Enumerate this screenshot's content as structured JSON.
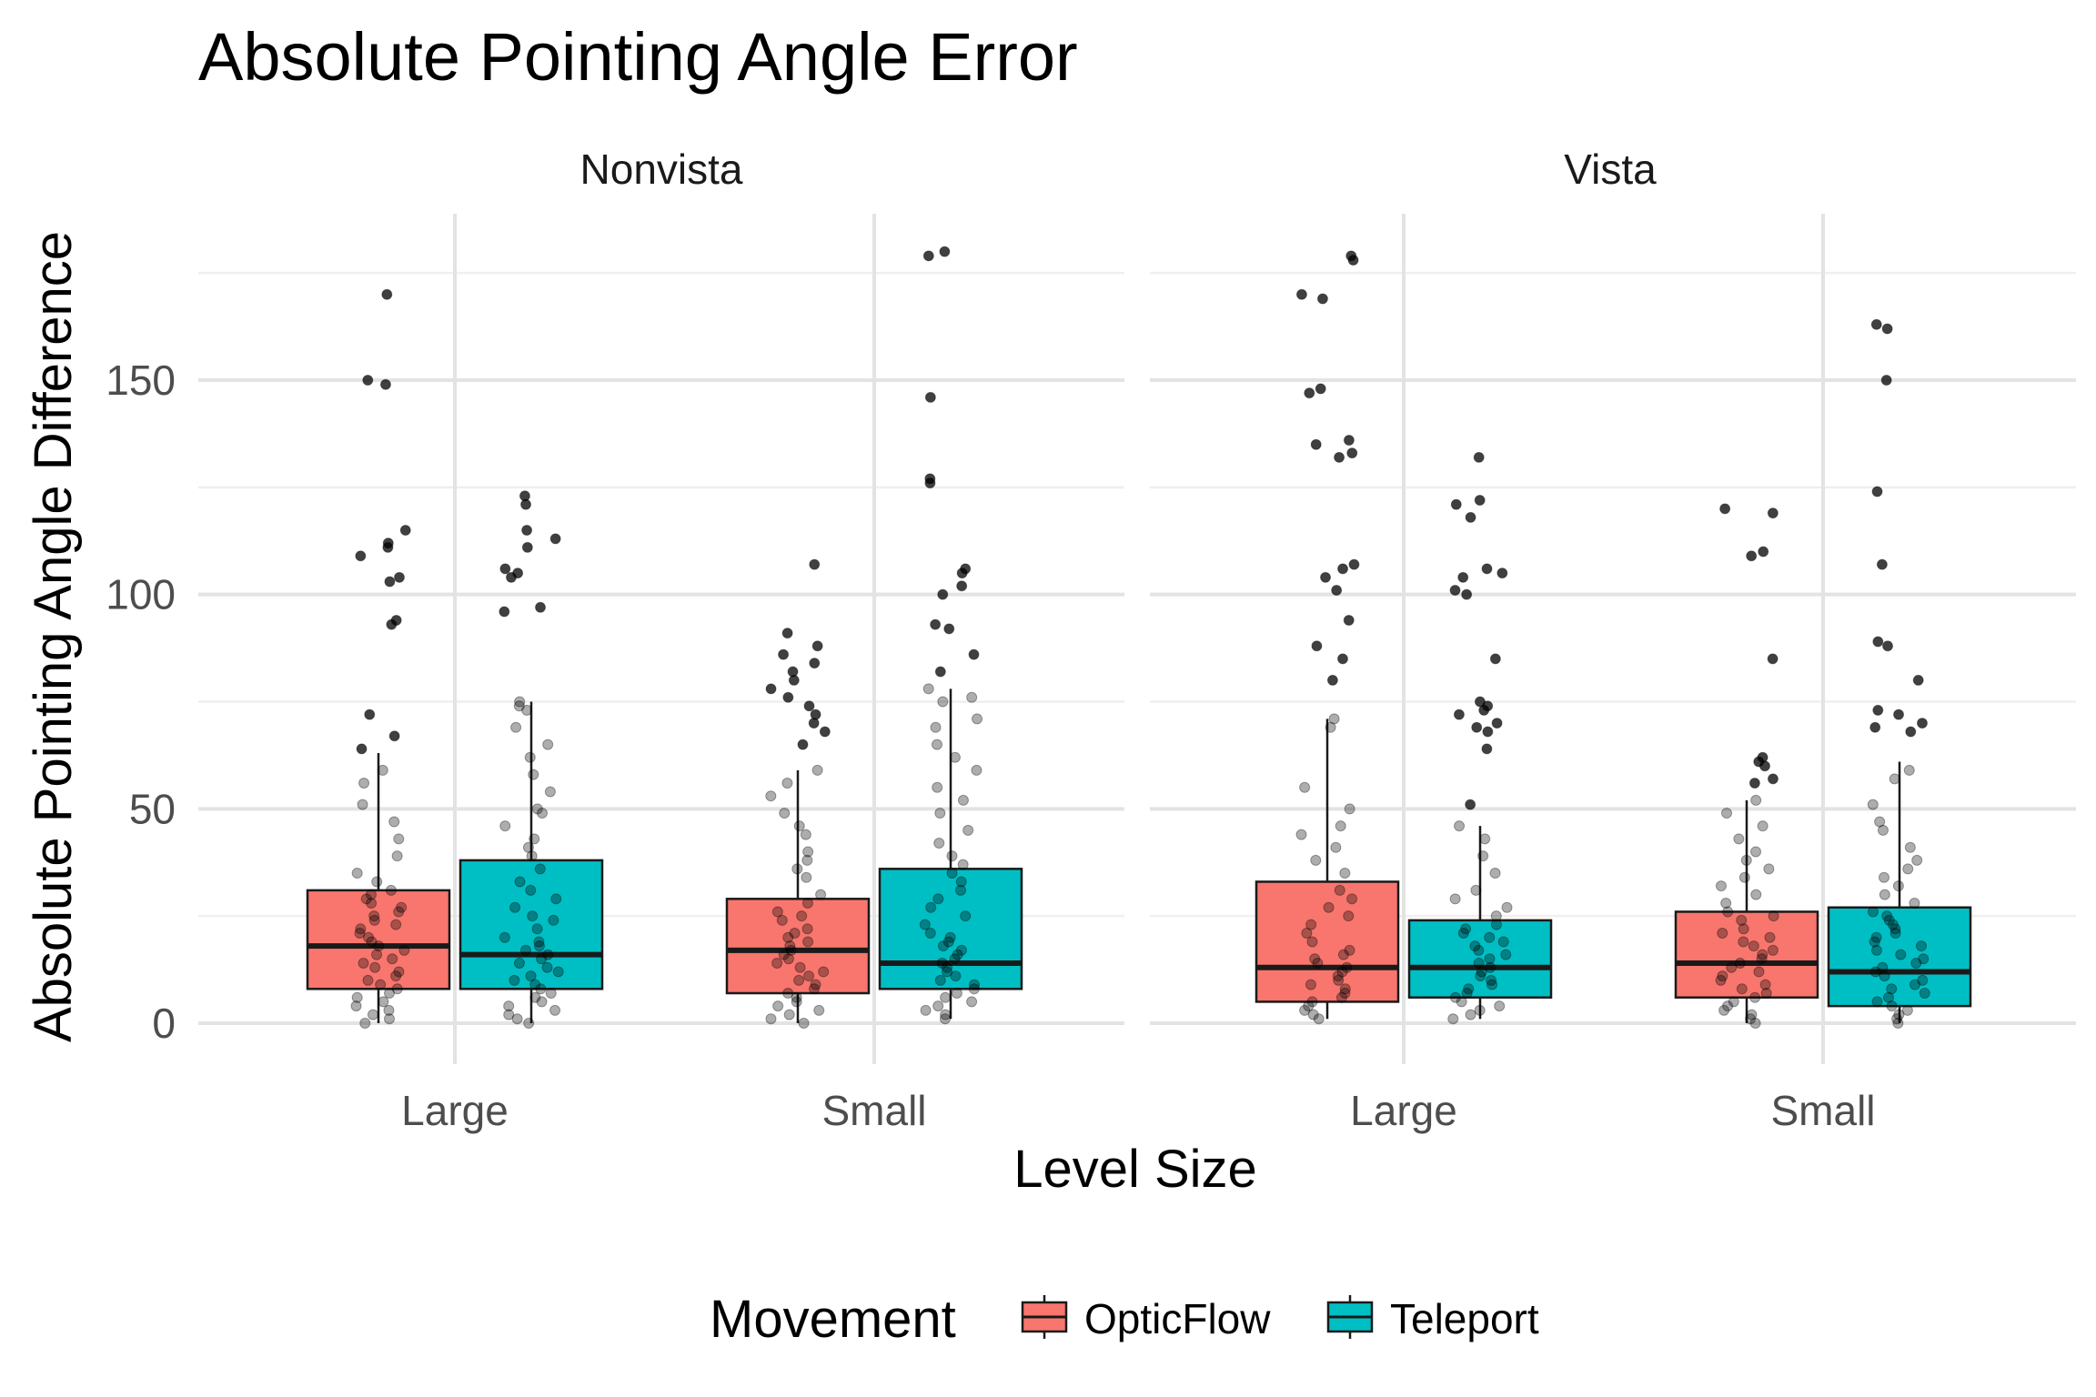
{
  "chart_data": {
    "type": "boxplot",
    "title": "Absolute Pointing Angle Error",
    "xlabel": "Level Size",
    "ylabel": "Absolute Pointing Angle Difference",
    "ylim": [
      0,
      190
    ],
    "y_ticks": [
      0,
      50,
      100,
      150
    ],
    "grid": true,
    "legend": {
      "title": "Movement",
      "position": "bottom",
      "entries": [
        {
          "name": "OpticFlow",
          "color": "#F8766D"
        },
        {
          "name": "Teleport",
          "color": "#00BFC4"
        }
      ]
    },
    "facets": [
      {
        "label": "Nonvista",
        "categories": [
          "Large",
          "Small"
        ],
        "boxes": [
          {
            "category": "Large",
            "group": "OpticFlow",
            "lower_whisker": 0,
            "q1": 8,
            "median": 18,
            "q3": 31,
            "upper_whisker": 63,
            "points": [
              170,
              150,
              149,
              115,
              112,
              111,
              109,
              104,
              103,
              94,
              93,
              72,
              67,
              64,
              59,
              56,
              51,
              47,
              43,
              39,
              35,
              33,
              31,
              30,
              29,
              28,
              27,
              26,
              25,
              24,
              23,
              22,
              21,
              20,
              19,
              18,
              17,
              16,
              15,
              14,
              13,
              12,
              11,
              10,
              9,
              8,
              7,
              6,
              5,
              4,
              3,
              2,
              1,
              0
            ]
          },
          {
            "category": "Large",
            "group": "Teleport",
            "lower_whisker": 0,
            "q1": 8,
            "median": 16,
            "q3": 38,
            "upper_whisker": 75,
            "points": [
              123,
              121,
              115,
              113,
              111,
              106,
              105,
              104,
              97,
              96,
              75,
              74,
              73,
              69,
              65,
              62,
              58,
              54,
              50,
              49,
              46,
              43,
              41,
              39,
              36,
              33,
              31,
              29,
              27,
              25,
              24,
              22,
              20,
              19,
              18,
              17,
              16,
              15,
              14,
              13,
              12,
              11,
              10,
              9,
              8,
              7,
              6,
              5,
              4,
              3,
              2,
              1,
              0
            ]
          }
        ]
      },
      {
        "label": "Nonvista",
        "categories": [
          "Large",
          "Small"
        ],
        "boxes": [
          {
            "category": "Small",
            "group": "OpticFlow",
            "lower_whisker": 0,
            "q1": 7,
            "median": 17,
            "q3": 29,
            "upper_whisker": 59,
            "points": [
              107,
              91,
              88,
              86,
              84,
              82,
              80,
              78,
              76,
              74,
              72,
              70,
              68,
              65,
              59,
              56,
              53,
              49,
              46,
              44,
              40,
              38,
              36,
              34,
              30,
              28,
              26,
              25,
              24,
              22,
              21,
              20,
              19,
              18,
              17,
              16,
              15,
              14,
              13,
              12,
              11,
              10,
              9,
              8,
              7,
              6,
              5,
              4,
              3,
              2,
              1,
              0
            ]
          },
          {
            "category": "Small",
            "group": "Teleport",
            "lower_whisker": 1,
            "q1": 8,
            "median": 14,
            "q3": 36,
            "upper_whisker": 78,
            "points": [
              180,
              179,
              146,
              127,
              126,
              106,
              105,
              102,
              100,
              93,
              92,
              86,
              82,
              78,
              76,
              75,
              71,
              69,
              65,
              62,
              59,
              55,
              52,
              49,
              45,
              42,
              39,
              37,
              35,
              33,
              31,
              29,
              27,
              25,
              23,
              21,
              20,
              19,
              18,
              17,
              16,
              15,
              14,
              13,
              12,
              11,
              10,
              9,
              8,
              7,
              6,
              5,
              4,
              3,
              2,
              1
            ]
          }
        ]
      },
      {
        "label": "Vista",
        "categories": [
          "Large",
          "Small"
        ],
        "boxes": [
          {
            "category": "Large",
            "group": "OpticFlow",
            "lower_whisker": 1,
            "q1": 5,
            "median": 13,
            "q3": 33,
            "upper_whisker": 71,
            "points": [
              179,
              178,
              170,
              169,
              148,
              147,
              136,
              135,
              133,
              132,
              107,
              106,
              104,
              101,
              94,
              88,
              85,
              80,
              71,
              69,
              55,
              50,
              46,
              44,
              41,
              38,
              35,
              31,
              29,
              27,
              25,
              23,
              21,
              19,
              17,
              16,
              15,
              14,
              13,
              12,
              11,
              10,
              9,
              8,
              7,
              6,
              5,
              4,
              3,
              2,
              1
            ]
          },
          {
            "category": "Large",
            "group": "Teleport",
            "lower_whisker": 1,
            "q1": 6,
            "median": 13,
            "q3": 24,
            "upper_whisker": 46,
            "points": [
              132,
              122,
              121,
              118,
              106,
              105,
              104,
              101,
              100,
              85,
              75,
              74,
              73,
              72,
              70,
              69,
              68,
              64,
              51,
              46,
              43,
              39,
              35,
              31,
              29,
              27,
              25,
              23,
              22,
              21,
              20,
              19,
              18,
              17,
              16,
              15,
              14,
              13,
              12,
              11,
              10,
              9,
              8,
              7,
              6,
              5,
              4,
              3,
              2,
              1
            ]
          }
        ]
      },
      {
        "label": "Vista",
        "categories": [
          "Large",
          "Small"
        ],
        "boxes": [
          {
            "category": "Small",
            "group": "OpticFlow",
            "lower_whisker": 0,
            "q1": 6,
            "median": 14,
            "q3": 26,
            "upper_whisker": 52,
            "points": [
              120,
              119,
              110,
              109,
              85,
              62,
              61,
              60,
              57,
              56,
              52,
              49,
              46,
              43,
              40,
              38,
              36,
              34,
              32,
              30,
              28,
              26,
              25,
              24,
              22,
              21,
              20,
              19,
              18,
              17,
              16,
              15,
              14,
              13,
              12,
              11,
              10,
              9,
              8,
              7,
              6,
              5,
              4,
              3,
              2,
              1,
              0
            ]
          },
          {
            "category": "Small",
            "group": "Teleport",
            "lower_whisker": 0,
            "q1": 4,
            "median": 12,
            "q3": 27,
            "upper_whisker": 61,
            "points": [
              163,
              162,
              150,
              124,
              107,
              89,
              88,
              80,
              73,
              72,
              70,
              69,
              68,
              59,
              57,
              51,
              47,
              45,
              41,
              38,
              36,
              34,
              32,
              30,
              28,
              26,
              25,
              24,
              23,
              22,
              21,
              20,
              19,
              18,
              17,
              16,
              15,
              14,
              13,
              12,
              11,
              10,
              9,
              8,
              7,
              6,
              5,
              4,
              3,
              2,
              1,
              0
            ]
          }
        ]
      }
    ]
  }
}
